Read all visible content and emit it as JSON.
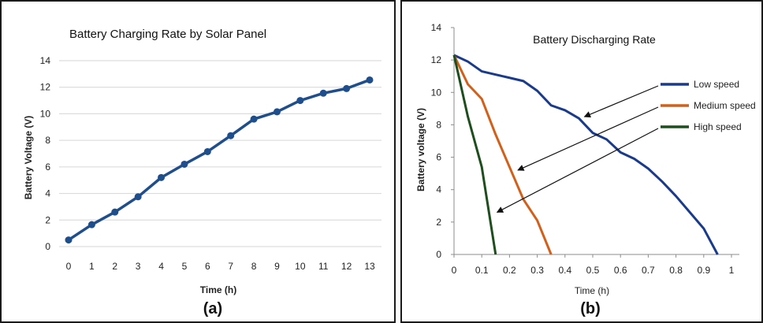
{
  "chart_data": [
    {
      "type": "line",
      "title": "Battery Charging Rate by Solar Panel",
      "xlabel": "Time (h)",
      "ylabel": "Battery Voltage (V)",
      "panel_label": "(a)",
      "xlim": [
        0,
        13
      ],
      "ylim": [
        0,
        14
      ],
      "x_ticks": [
        "0",
        "1",
        "2",
        "3",
        "4",
        "5",
        "6",
        "7",
        "8",
        "9",
        "10",
        "11",
        "12",
        "13"
      ],
      "y_ticks": [
        "0",
        "2",
        "4",
        "6",
        "8",
        "10",
        "12",
        "14"
      ],
      "grid": "horizontal",
      "series": [
        {
          "color": "#1f4e8c",
          "markers": true,
          "x": [
            0,
            1,
            2,
            3,
            4,
            5,
            6,
            7,
            8,
            9,
            10,
            11,
            12,
            13
          ],
          "y": [
            0.5,
            1.65,
            2.6,
            3.75,
            5.2,
            6.2,
            7.15,
            8.35,
            9.6,
            10.15,
            11.0,
            11.55,
            11.9,
            12.55
          ]
        }
      ]
    },
    {
      "type": "line",
      "title": "Battery Discharging Rate",
      "xlabel": "Time (h)",
      "ylabel": "Battery voltage (V)",
      "panel_label": "(b)",
      "xlim": [
        0,
        1
      ],
      "ylim": [
        0,
        14
      ],
      "x_ticks": [
        "0",
        "0.1",
        "0.2",
        "0.3",
        "0.4",
        "0.5",
        "0.6",
        "0.7",
        "0.8",
        "0.9",
        "1"
      ],
      "y_ticks": [
        "0",
        "2",
        "4",
        "6",
        "8",
        "10",
        "12",
        "14"
      ],
      "grid": "none",
      "legend": "right",
      "series": [
        {
          "name": "Low speed",
          "color": "#1a3a8c",
          "x": [
            0,
            0.05,
            0.1,
            0.15,
            0.2,
            0.25,
            0.3,
            0.35,
            0.4,
            0.45,
            0.5,
            0.55,
            0.6,
            0.65,
            0.7,
            0.75,
            0.8,
            0.85,
            0.9,
            0.95
          ],
          "y": [
            12.3,
            11.9,
            11.3,
            11.1,
            10.9,
            10.7,
            10.1,
            9.2,
            8.9,
            8.4,
            7.5,
            7.1,
            6.3,
            5.9,
            5.3,
            4.5,
            3.6,
            2.6,
            1.6,
            0
          ]
        },
        {
          "name": "Medium speed",
          "color": "#d2601a",
          "x": [
            0,
            0.05,
            0.1,
            0.15,
            0.2,
            0.25,
            0.3,
            0.35
          ],
          "y": [
            12.3,
            10.5,
            9.6,
            7.4,
            5.4,
            3.4,
            2.1,
            0
          ]
        },
        {
          "name": "High speed",
          "color": "#1e4d1e",
          "x": [
            0,
            0.05,
            0.1,
            0.15
          ],
          "y": [
            12.3,
            8.5,
            5.4,
            0
          ]
        }
      ]
    }
  ]
}
